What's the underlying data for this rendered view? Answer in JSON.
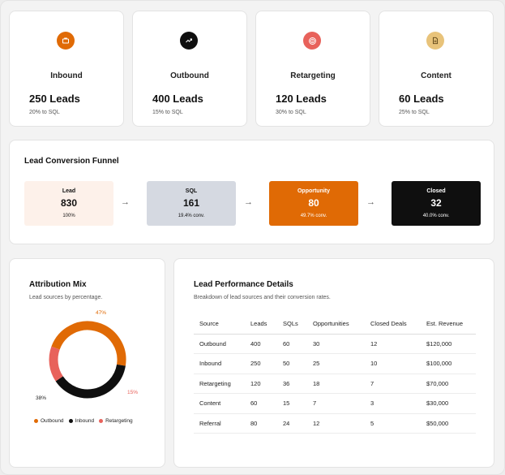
{
  "stats": [
    {
      "name": "Inbound",
      "leads": "250 Leads",
      "sql": "20% to SQL",
      "icon": "briefcase-icon",
      "color": "#e06a05"
    },
    {
      "name": "Outbound",
      "leads": "400 Leads",
      "sql": "15% to SQL",
      "icon": "trend-up-icon",
      "color": "#0f0f0f"
    },
    {
      "name": "Retargeting",
      "leads": "120 Leads",
      "sql": "30% to SQL",
      "icon": "target-icon",
      "color": "#e8625b"
    },
    {
      "name": "Content",
      "leads": "60 Leads",
      "sql": "25% to SQL",
      "icon": "document-icon",
      "color": "#e8c37a"
    }
  ],
  "funnel": {
    "title": "Lead Conversion Funnel",
    "stages": [
      {
        "label": "Lead",
        "value": "830",
        "conv": "100%",
        "bg": "#fdf1ea",
        "fg": "#111"
      },
      {
        "label": "SQL",
        "value": "161",
        "conv": "19.4% conv.",
        "bg": "#d5d9e1",
        "fg": "#111"
      },
      {
        "label": "Opportunity",
        "value": "80",
        "conv": "49.7% conv.",
        "bg": "#e06a05",
        "fg": "#ffffff"
      },
      {
        "label": "Closed",
        "value": "32",
        "conv": "40.0% conv.",
        "bg": "#0f0f0f",
        "fg": "#ffffff"
      }
    ]
  },
  "attribution": {
    "title": "Attribution Mix",
    "subtitle": "Lead sources by percentage.",
    "labels": {
      "outbound": "47%",
      "inbound": "38%",
      "retargeting": "15%"
    },
    "legend": [
      "Outbound",
      "Inbound",
      "Retargeting"
    ],
    "colors": {
      "outbound": "#e06a05",
      "inbound": "#0f0f0f",
      "retargeting": "#e8625b"
    }
  },
  "chart_data": {
    "type": "pie",
    "categories": [
      "Outbound",
      "Inbound",
      "Retargeting"
    ],
    "values": [
      47,
      38,
      15
    ]
  },
  "performance": {
    "title": "Lead Performance Details",
    "subtitle": "Breakdown of lead sources and their conversion rates.",
    "columns": [
      "Source",
      "Leads",
      "SQLs",
      "Opportunities",
      "Closed Deals",
      "Est. Revenue"
    ],
    "rows": [
      [
        "Outbound",
        "400",
        "60",
        "30",
        "12",
        "$120,000"
      ],
      [
        "Inbound",
        "250",
        "50",
        "25",
        "10",
        "$100,000"
      ],
      [
        "Retargeting",
        "120",
        "36",
        "18",
        "7",
        "$70,000"
      ],
      [
        "Content",
        "60",
        "15",
        "7",
        "3",
        "$30,000"
      ],
      [
        "Referral",
        "80",
        "24",
        "12",
        "5",
        "$50,000"
      ]
    ]
  }
}
